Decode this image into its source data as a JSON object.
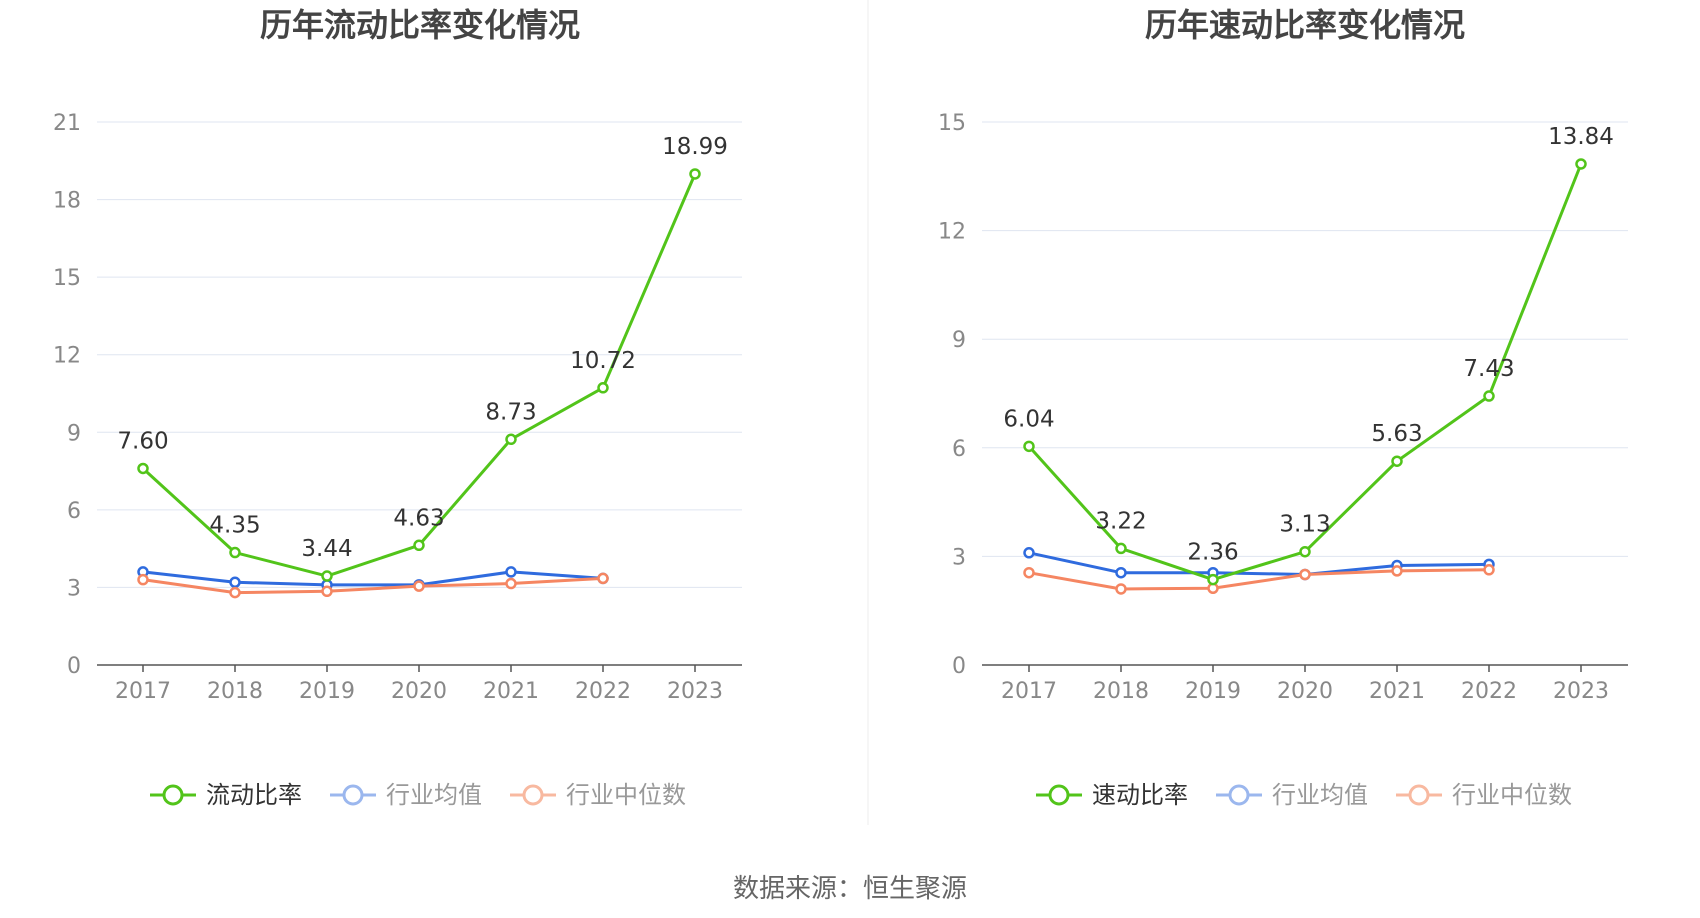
{
  "source_text": "数据来源：恒生聚源",
  "colors": {
    "company": "#52c41a",
    "industry_avg": "#2f6bde",
    "industry_median": "#f58662",
    "legend_avg": "#9bb7ee",
    "legend_median": "#f8b9a0",
    "grid": "#dfe5f0",
    "axis": "#555555",
    "tick": "#888888",
    "title": "#444444"
  },
  "chart_data": [
    {
      "type": "line",
      "title": "历年流动比率变化情况",
      "categories": [
        "2017",
        "2018",
        "2019",
        "2020",
        "2021",
        "2022",
        "2023"
      ],
      "ylim": [
        0,
        21
      ],
      "yticks": [
        0,
        3,
        6,
        9,
        12,
        15,
        18,
        21
      ],
      "grid": true,
      "legend_position": "bottom",
      "series": [
        {
          "name": "流动比率",
          "key": "company",
          "values": [
            7.6,
            4.35,
            3.44,
            4.63,
            8.73,
            10.72,
            18.99
          ],
          "labels": [
            "7.60",
            "4.35",
            "3.44",
            "4.63",
            "8.73",
            "10.72",
            "18.99"
          ]
        },
        {
          "name": "行业均值",
          "key": "industry_avg",
          "values": [
            3.6,
            3.2,
            3.1,
            3.1,
            3.6,
            3.35,
            null
          ]
        },
        {
          "name": "行业中位数",
          "key": "industry_median",
          "values": [
            3.3,
            2.8,
            2.85,
            3.05,
            3.15,
            3.35,
            null
          ]
        }
      ]
    },
    {
      "type": "line",
      "title": "历年速动比率变化情况",
      "categories": [
        "2017",
        "2018",
        "2019",
        "2020",
        "2021",
        "2022",
        "2023"
      ],
      "ylim": [
        0,
        15
      ],
      "yticks": [
        0,
        3,
        6,
        9,
        12,
        15
      ],
      "grid": true,
      "legend_position": "bottom",
      "series": [
        {
          "name": "速动比率",
          "key": "company",
          "values": [
            6.04,
            3.22,
            2.36,
            3.13,
            5.63,
            7.43,
            13.84
          ],
          "labels": [
            "6.04",
            "3.22",
            "2.36",
            "3.13",
            "5.63",
            "7.43",
            "13.84"
          ]
        },
        {
          "name": "行业均值",
          "key": "industry_avg",
          "values": [
            3.1,
            2.55,
            2.55,
            2.5,
            2.75,
            2.78,
            null
          ]
        },
        {
          "name": "行业中位数",
          "key": "industry_median",
          "values": [
            2.55,
            2.1,
            2.12,
            2.5,
            2.6,
            2.63,
            null
          ]
        }
      ]
    }
  ]
}
